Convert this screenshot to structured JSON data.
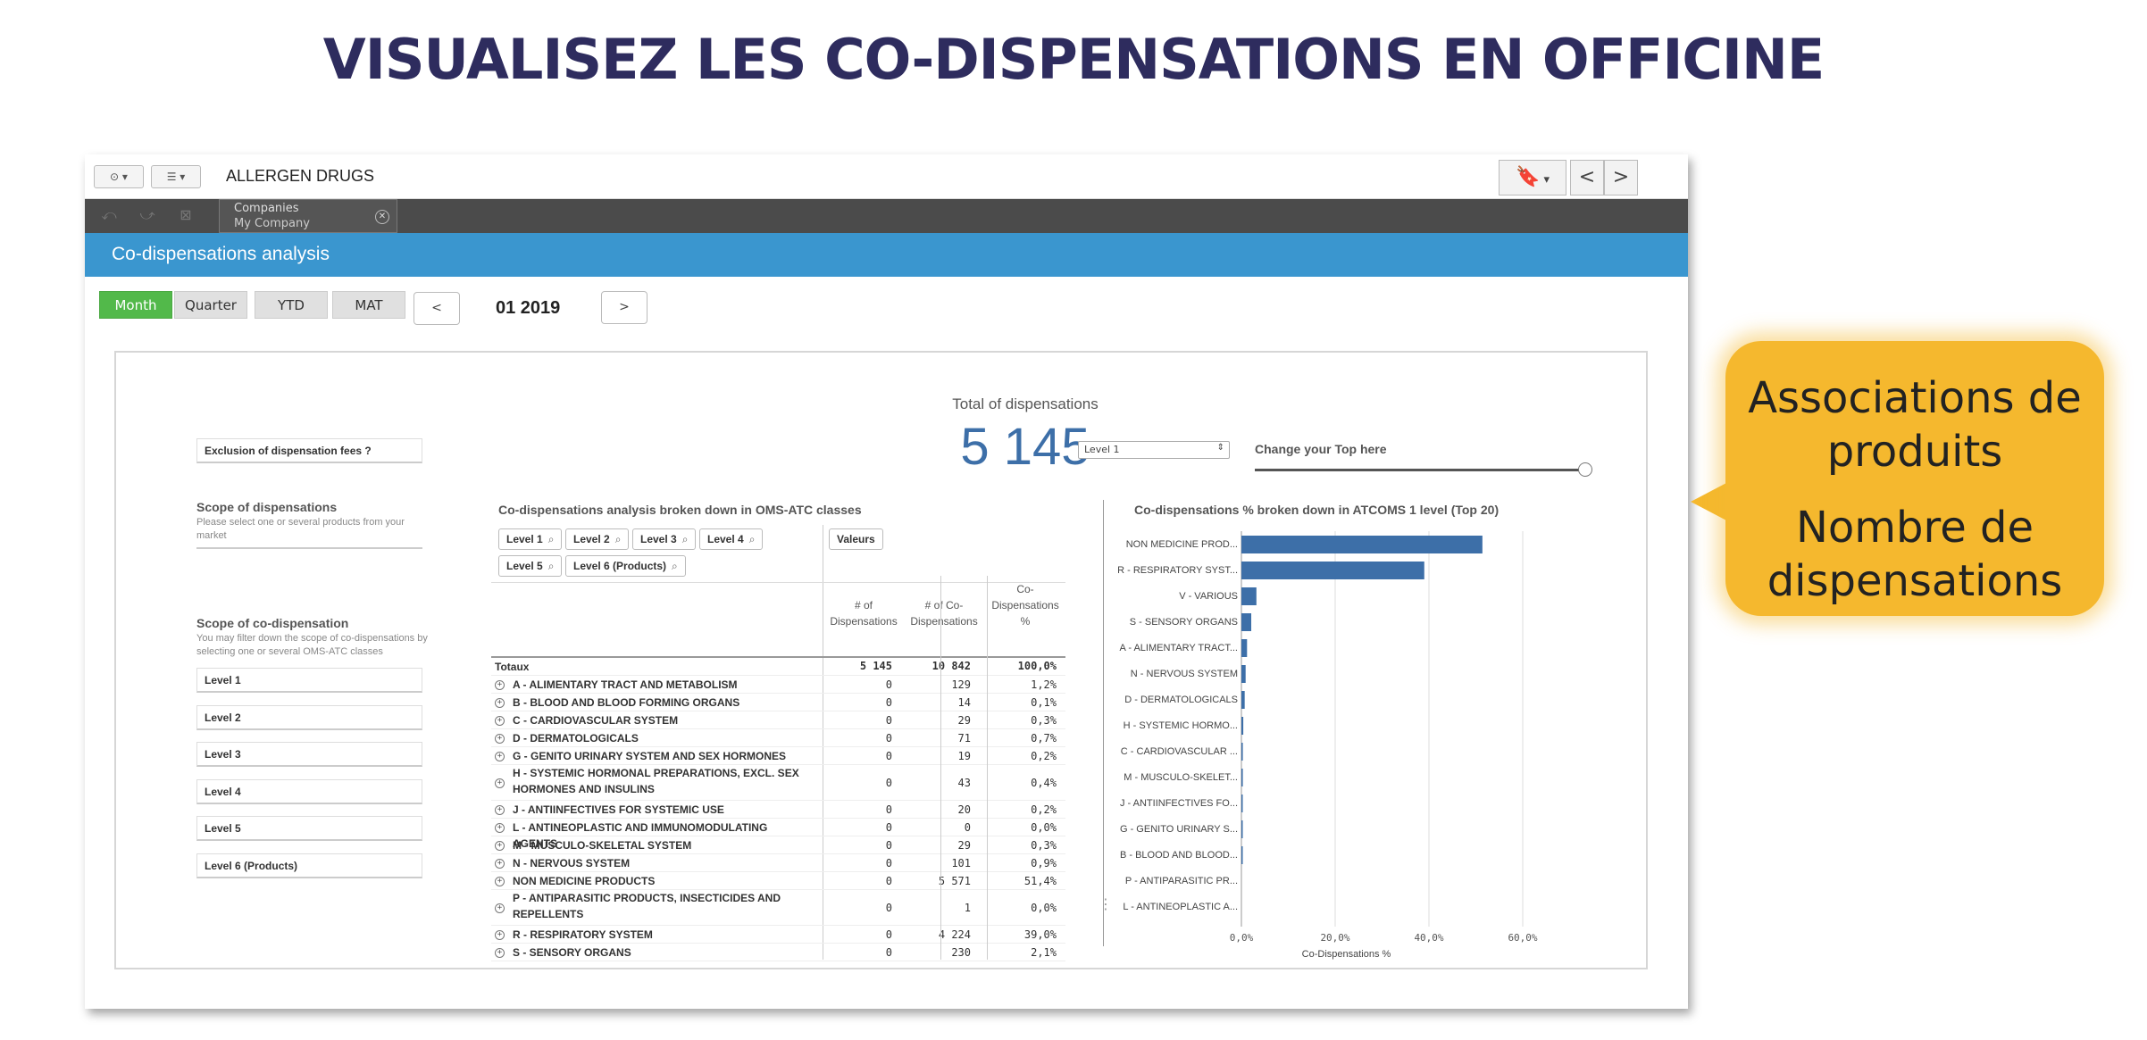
{
  "slide": {
    "title": "VISUALISEZ LES CO-DISPENSATIONS EN OFFICINE"
  },
  "toolbar": {
    "app_name": "ALLERGEN DRUGS",
    "prev_sheet": "<",
    "next_sheet": ">"
  },
  "selections": {
    "field": "Companies",
    "value": "My Company"
  },
  "sheet": {
    "title": "Co-dispensations analysis"
  },
  "period": {
    "buttons": [
      "Month",
      "Quarter",
      "YTD",
      "MAT"
    ],
    "active": "Month",
    "prev": "<",
    "next": ">",
    "current": "01 2019"
  },
  "sidebar": {
    "exclusion_label": "Exclusion of dispensation fees ?",
    "scope_disp_title": "Scope of dispensations",
    "scope_disp_desc": "Please select one or several products from your market",
    "scope_codisp_title": "Scope of co-dispensation",
    "scope_codisp_desc": "You may filter down the scope of co-dispensations by selecting one or several OMS-ATC classes",
    "levels": [
      "Level 1",
      "Level 2",
      "Level 3",
      "Level 4",
      "Level 5",
      "Level 6 (Products)"
    ]
  },
  "kpi": {
    "label": "Total of dispensations",
    "value": "5 145"
  },
  "level_select": {
    "value": "Level 1"
  },
  "top_slider": {
    "label": "Change your Top here",
    "value_fraction": 1.0
  },
  "table": {
    "title": "Co-dispensations analysis broken down in OMS-ATC classes",
    "dimension_chips": [
      "Level 1",
      "Level 2",
      "Level 3",
      "Level 4",
      "Level 5",
      "Level 6 (Products)"
    ],
    "values_chip": "Valeurs",
    "columns": [
      "# of Dispensations",
      "# of Co-Dispensations",
      "Co-Dispensations %"
    ],
    "totals": {
      "label": "Totaux",
      "c1": "5 145",
      "c2": "10 842",
      "c3": "100,0%"
    },
    "rows": [
      {
        "label": "A - ALIMENTARY TRACT AND METABOLISM",
        "c1": "0",
        "c2": "129",
        "c3": "1,2%"
      },
      {
        "label": "B - BLOOD AND BLOOD FORMING ORGANS",
        "c1": "0",
        "c2": "14",
        "c3": "0,1%"
      },
      {
        "label": "C - CARDIOVASCULAR SYSTEM",
        "c1": "0",
        "c2": "29",
        "c3": "0,3%"
      },
      {
        "label": "D - DERMATOLOGICALS",
        "c1": "0",
        "c2": "71",
        "c3": "0,7%"
      },
      {
        "label": "G - GENITO URINARY SYSTEM AND SEX HORMONES",
        "c1": "0",
        "c2": "19",
        "c3": "0,2%"
      },
      {
        "label": "H - SYSTEMIC HORMONAL PREPARATIONS, EXCL. SEX HORMONES AND INSULINS",
        "c1": "0",
        "c2": "43",
        "c3": "0,4%"
      },
      {
        "label": "J - ANTIINFECTIVES FOR SYSTEMIC USE",
        "c1": "0",
        "c2": "20",
        "c3": "0,2%"
      },
      {
        "label": "L - ANTINEOPLASTIC AND IMMUNOMODULATING AGENTS",
        "c1": "0",
        "c2": "0",
        "c3": "0,0%"
      },
      {
        "label": "M - MUSCULO-SKELETAL SYSTEM",
        "c1": "0",
        "c2": "29",
        "c3": "0,3%"
      },
      {
        "label": "N - NERVOUS SYSTEM",
        "c1": "0",
        "c2": "101",
        "c3": "0,9%"
      },
      {
        "label": "NON MEDICINE PRODUCTS",
        "c1": "0",
        "c2": "5 571",
        "c3": "51,4%"
      },
      {
        "label": "P - ANTIPARASITIC PRODUCTS, INSECTICIDES AND REPELLENTS",
        "c1": "0",
        "c2": "1",
        "c3": "0,0%"
      },
      {
        "label": "R - RESPIRATORY SYSTEM",
        "c1": "0",
        "c2": "4 224",
        "c3": "39,0%"
      },
      {
        "label": "S - SENSORY ORGANS",
        "c1": "0",
        "c2": "230",
        "c3": "2,1%"
      }
    ]
  },
  "chart_data": {
    "type": "bar",
    "orientation": "horizontal",
    "title": "Co-dispensations % broken down in ATCOMS 1 level (Top 20)",
    "xlabel": "Co-Dispensations %",
    "xlim": [
      0,
      60
    ],
    "xticks": [
      "0,0%",
      "20,0%",
      "40,0%",
      "60,0%"
    ],
    "grid": true,
    "color": "#3d6fa8",
    "categories": [
      "NON MEDICINE PROD...",
      "R - RESPIRATORY SYST...",
      "V - VARIOUS",
      "S - SENSORY ORGANS",
      "A - ALIMENTARY TRACT...",
      "N - NERVOUS SYSTEM",
      "D - DERMATOLOGICALS",
      "H - SYSTEMIC HORMO...",
      "C - CARDIOVASCULAR ...",
      "M - MUSCULO-SKELET...",
      "J - ANTIINFECTIVES FO...",
      "G - GENITO URINARY S...",
      "B - BLOOD AND BLOOD...",
      "P - ANTIPARASITIC PR...",
      "L - ANTINEOPLASTIC A..."
    ],
    "values": [
      51.4,
      39.0,
      3.2,
      2.1,
      1.2,
      0.9,
      0.7,
      0.4,
      0.3,
      0.3,
      0.2,
      0.2,
      0.1,
      0.0,
      0.0
    ]
  },
  "callout": {
    "line1": "Associations de",
    "line2": "produits",
    "line3": "Nombre de",
    "line4": "dispensations",
    "color": "#f5b82e"
  }
}
